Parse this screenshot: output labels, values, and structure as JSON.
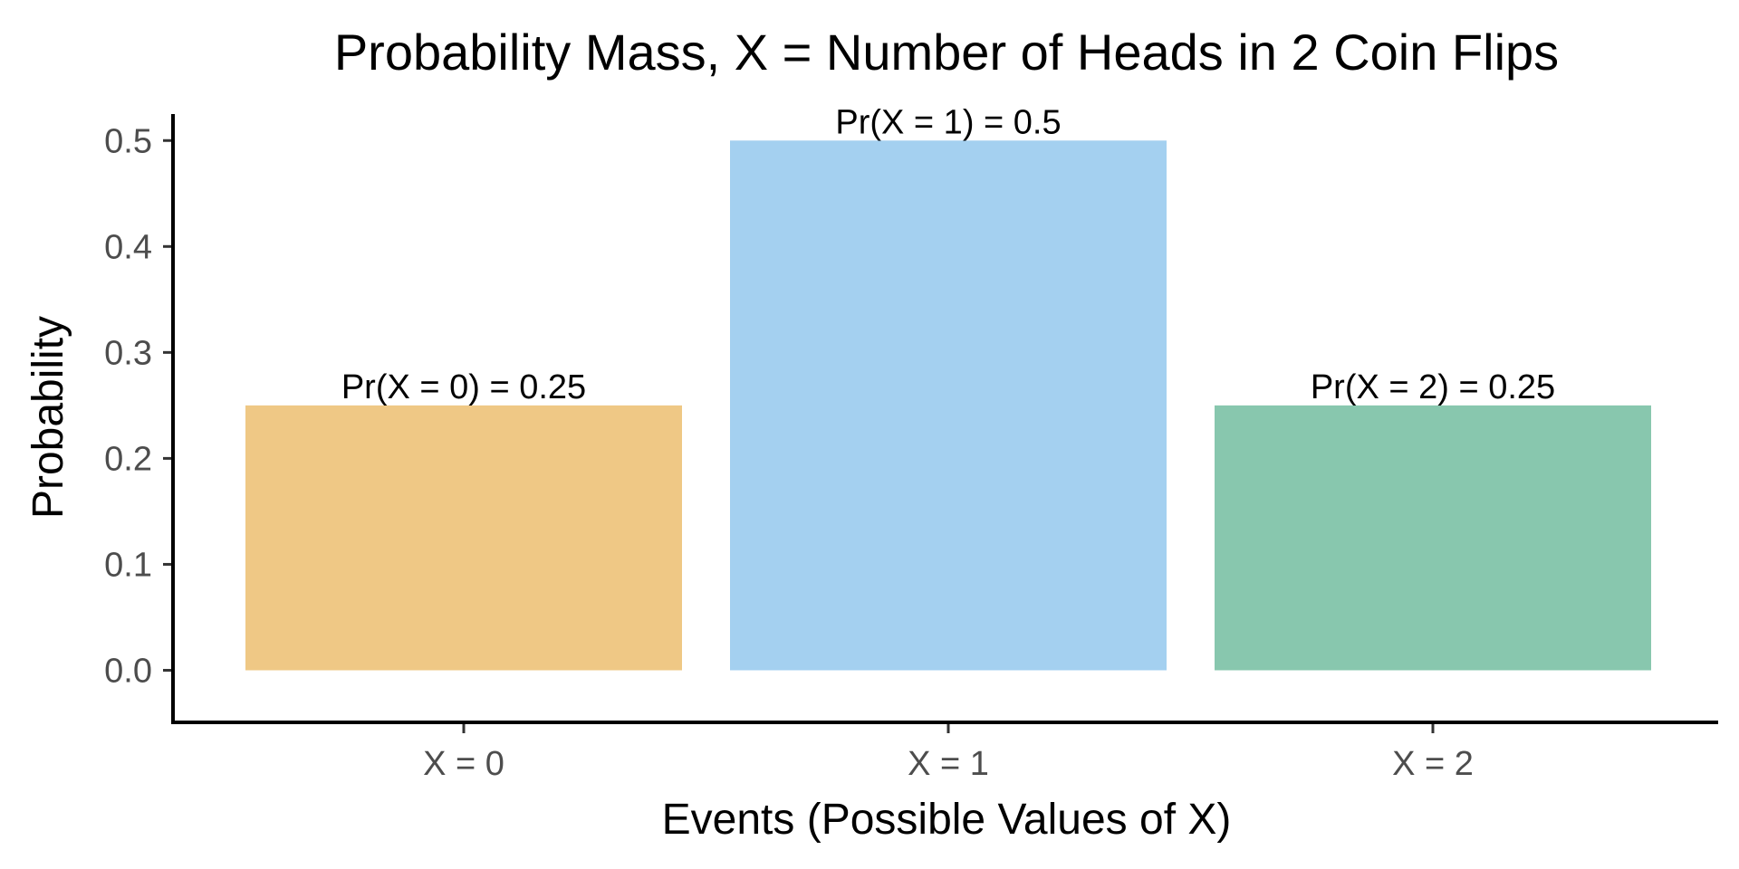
{
  "chart_data": {
    "type": "bar",
    "title": "Probability Mass, X = Number of Heads in 2 Coin Flips",
    "xlabel": "Events (Possible Values of X)",
    "ylabel": "Probability",
    "categories": [
      "X = 0",
      "X = 1",
      "X = 2"
    ],
    "values": [
      0.25,
      0.5,
      0.25
    ],
    "data_labels": [
      "Pr(X = 0) = 0.25",
      "Pr(X = 1) = 0.5",
      "Pr(X = 2) = 0.25"
    ],
    "colors": [
      "#EFC885",
      "#A4D0F0",
      "#88C7AE"
    ],
    "yticks": [
      0.0,
      0.1,
      0.2,
      0.3,
      0.4,
      0.5
    ],
    "ytick_labels": [
      "0.0",
      "0.1",
      "0.2",
      "0.3",
      "0.4",
      "0.5"
    ],
    "ylim": [
      -0.05,
      0.525
    ],
    "grid": false,
    "legend": "none"
  }
}
